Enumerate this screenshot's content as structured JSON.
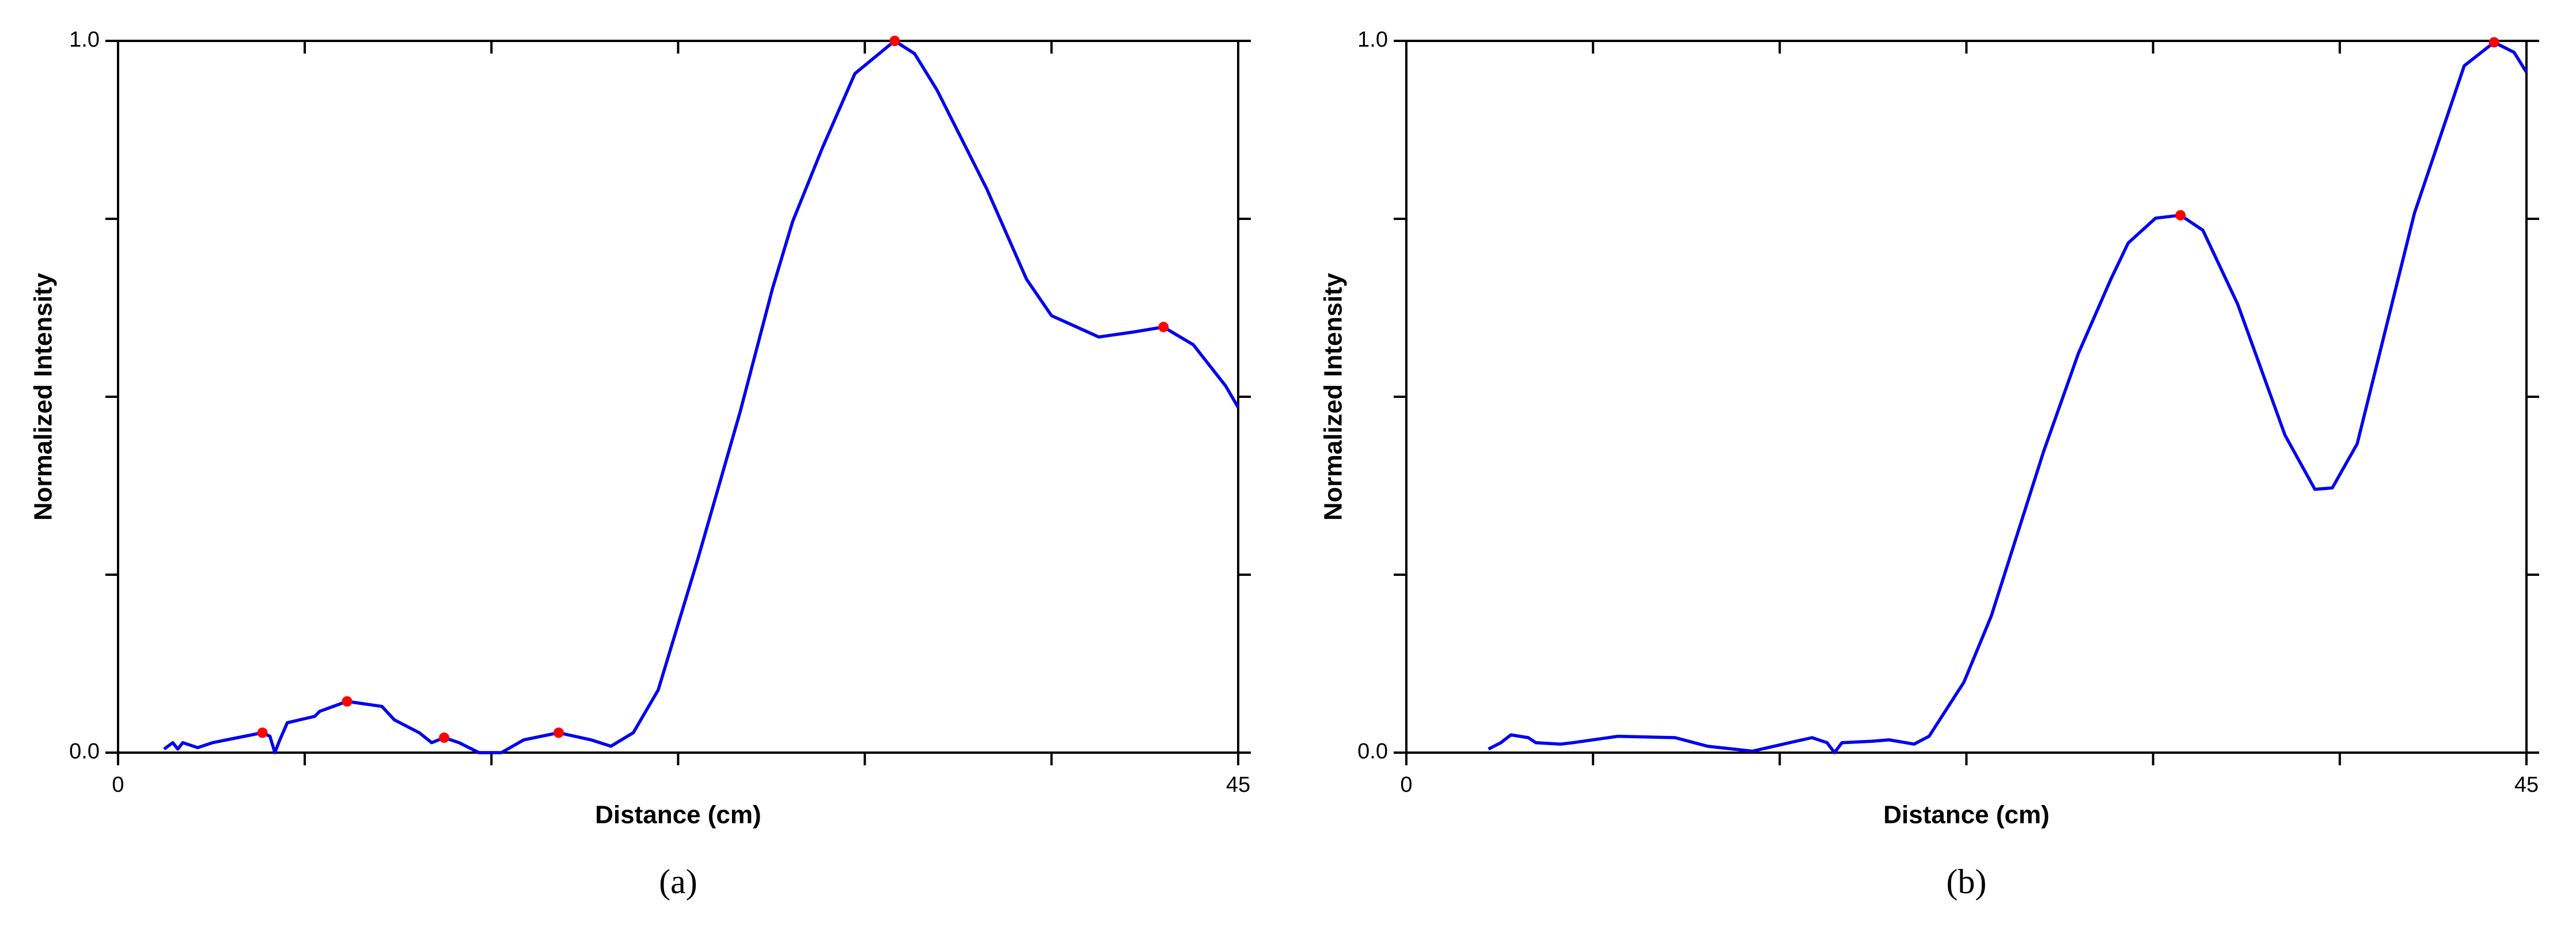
{
  "chart_data": [
    {
      "type": "line",
      "caption": "(a)",
      "xlabel": "Distance (cm)",
      "ylabel": "Normalized Intensity",
      "xlim": [
        0,
        45
      ],
      "ylim": [
        0,
        1
      ],
      "xticks": [
        0,
        45
      ],
      "xminorticks": [
        7.5,
        15,
        22.5,
        30,
        37.5
      ],
      "yticks": [
        {
          "value": 0,
          "label": "0.0"
        },
        {
          "value": 1,
          "label": "1.0"
        }
      ],
      "yminorticks": [
        0.25,
        0.5,
        0.75
      ],
      "color": "#0000ee",
      "x": [
        1.85,
        2.2,
        2.4,
        2.6,
        3.2,
        3.8,
        4.8,
        5.8,
        6.1,
        6.3,
        6.5,
        6.8,
        7.9,
        8.1,
        9.2,
        10.6,
        11.1,
        12.1,
        12.6,
        13.1,
        13.7,
        14.5,
        15.4,
        16.3,
        17.7,
        19.0,
        19.8,
        20.7,
        21.7,
        23.3,
        25.0,
        26.3,
        27.1,
        28.3,
        29.6,
        31.2,
        32.0,
        32.9,
        34.9,
        36.5,
        37.5,
        39.4,
        40.8,
        42.0,
        43.2,
        44.5,
        45
      ],
      "values": [
        0.005,
        0.014,
        0.005,
        0.014,
        0.007,
        0.014,
        0.021,
        0.028,
        0.023,
        0,
        0.018,
        0.042,
        0.051,
        0.058,
        0.072,
        0.065,
        0.046,
        0.028,
        0.014,
        0.021,
        0.014,
        0,
        0,
        0.018,
        0.028,
        0.018,
        0.009,
        0.028,
        0.088,
        0.273,
        0.48,
        0.653,
        0.746,
        0.85,
        0.954,
        1.0,
        0.982,
        0.931,
        0.792,
        0.665,
        0.614,
        0.584,
        0.591,
        0.598,
        0.573,
        0.515,
        0.485
      ],
      "peaks": {
        "color": "#ff0000",
        "x": [
          5.8,
          9.2,
          13.1,
          17.7,
          31.2,
          42.0
        ],
        "values": [
          0.028,
          0.072,
          0.021,
          0.028,
          1.0,
          0.598
        ]
      }
    },
    {
      "type": "line",
      "caption": "(b)",
      "xlabel": "Distance (cm)",
      "ylabel": "Normalized Intensity",
      "xlim": [
        0,
        45
      ],
      "ylim": [
        0,
        1
      ],
      "xticks": [
        0,
        45
      ],
      "xminorticks": [
        7.5,
        15,
        22.5,
        30,
        37.5
      ],
      "yticks": [
        {
          "value": 0,
          "label": "0.0"
        },
        {
          "value": 1,
          "label": "1.0"
        }
      ],
      "yminorticks": [
        0.25,
        0.5,
        0.75
      ],
      "color": "#0000ee",
      "x": [
        3.3,
        3.8,
        4.2,
        4.9,
        5.2,
        6.2,
        6.7,
        8.5,
        10.8,
        12.1,
        13.9,
        15.4,
        16.3,
        16.9,
        17.2,
        17.5,
        18.7,
        19.4,
        20.4,
        21.0,
        22.4,
        23.5,
        25.6,
        27.0,
        28.3,
        29.0,
        30.1,
        31.1,
        32.0,
        33.4,
        35.3,
        36.5,
        37.2,
        38.2,
        40.5,
        42.5,
        43.7,
        44.5,
        45
      ],
      "values": [
        0.005,
        0.014,
        0.025,
        0.021,
        0.014,
        0.012,
        0.014,
        0.023,
        0.021,
        0.009,
        0.002,
        0.014,
        0.021,
        0.014,
        0,
        0.014,
        0.016,
        0.018,
        0.012,
        0.023,
        0.099,
        0.192,
        0.423,
        0.561,
        0.665,
        0.716,
        0.751,
        0.755,
        0.734,
        0.63,
        0.446,
        0.37,
        0.372,
        0.434,
        0.758,
        0.965,
        0.998,
        0.984,
        0.956
      ],
      "peaks": {
        "color": "#ff0000",
        "x": [
          31.1,
          43.7
        ],
        "values": [
          0.755,
          0.998
        ]
      }
    }
  ]
}
